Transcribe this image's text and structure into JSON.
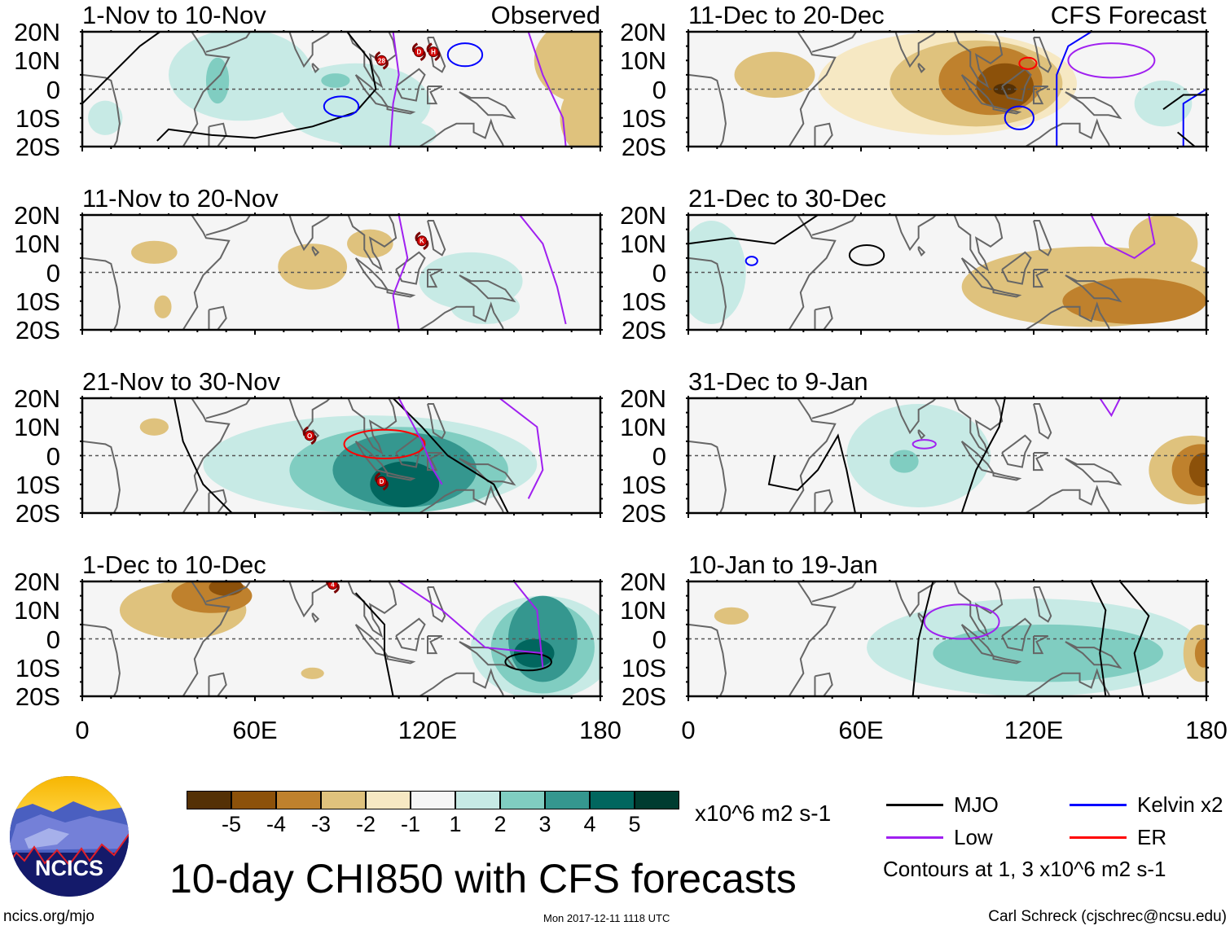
{
  "figure_title": "10-day CHI850 with CFS forecasts",
  "units": "x10^6 m2 s-1",
  "colorbar": {
    "ticks": [
      "-5",
      "-4",
      "-3",
      "-2",
      "-1",
      "1",
      "2",
      "3",
      "4",
      "5"
    ],
    "colors": [
      "#543005",
      "#8c510a",
      "#bf812d",
      "#dfc27d",
      "#f6e8c3",
      "#f5f5f5",
      "#c7eae5",
      "#80cdc1",
      "#35978f",
      "#01665e",
      "#003c30"
    ]
  },
  "legend": {
    "items": [
      {
        "label": "MJO",
        "color": "#000000"
      },
      {
        "label": "Kelvin x2",
        "color": "#0000ff"
      },
      {
        "label": "Low",
        "color": "#a020f0"
      },
      {
        "label": "ER",
        "color": "#ff0000"
      }
    ],
    "contours_note": "Contours at 1, 3 x10^6 m2 s-1"
  },
  "footer": {
    "url": "ncics.org/mjo",
    "timestamp": "Mon 2017-12-11 1118 UTC",
    "author": "Carl Schreck (cjschrec@ncsu.edu)"
  },
  "logo": {
    "text": "NCICS"
  },
  "axes": {
    "lat_labels": [
      "20N",
      "10N",
      "0",
      "10S",
      "20S"
    ],
    "lon_labels": [
      "0",
      "60E",
      "120E",
      "180"
    ],
    "lon_range": [
      0,
      180
    ],
    "lat_range": [
      -20,
      20
    ]
  },
  "panels": [
    {
      "title": "1-Nov to 10-Nov",
      "right_label": "Observed",
      "anomalies": [
        [
          55,
          5,
          25,
          16,
          1
        ],
        [
          95,
          -5,
          26,
          14,
          1
        ],
        [
          105,
          -16,
          18,
          6,
          1
        ],
        [
          8,
          -10,
          6,
          6,
          1
        ],
        [
          47,
          3,
          4,
          8,
          2
        ],
        [
          88,
          3,
          5,
          2.5,
          2
        ],
        [
          175,
          10,
          18,
          15,
          -2
        ],
        [
          178,
          -10,
          12,
          14,
          -2
        ]
      ],
      "contours": [
        {
          "type": "MJO",
          "points": [
            [
              0,
              -5
            ],
            [
              10,
              5
            ],
            [
              20,
              15
            ],
            [
              27,
              20
            ]
          ]
        },
        {
          "type": "MJO",
          "points": [
            [
              92,
              20
            ],
            [
              100,
              10
            ],
            [
              102,
              0
            ],
            [
              95,
              -8
            ],
            [
              80,
              -13
            ],
            [
              60,
              -17
            ],
            [
              45,
              -16
            ],
            [
              30,
              -14
            ],
            [
              26,
              -18
            ]
          ]
        },
        {
          "type": "Kelvin",
          "ellipse": [
            90,
            -6,
            6,
            3.5
          ]
        },
        {
          "type": "Kelvin",
          "ellipse": [
            133,
            12,
            6,
            4
          ]
        },
        {
          "type": "Low",
          "points": [
            [
              108,
              20
            ],
            [
              110,
              5
            ],
            [
              108,
              -5
            ],
            [
              107,
              -20
            ]
          ]
        },
        {
          "type": "Low",
          "points": [
            [
              155,
              20
            ],
            [
              160,
              5
            ],
            [
              167,
              -10
            ],
            [
              168,
              -20
            ]
          ]
        }
      ],
      "storms": [
        [
          104,
          10,
          "28"
        ],
        [
          117,
          13,
          "D"
        ],
        [
          122,
          13,
          "H"
        ]
      ]
    },
    {
      "title": "11-Nov to 20-Nov",
      "anomalies": [
        [
          25,
          7,
          8,
          4,
          -2
        ],
        [
          28,
          -12,
          3,
          4,
          -2
        ],
        [
          80,
          2,
          12,
          8,
          -2
        ],
        [
          100,
          10,
          8,
          5,
          -2
        ],
        [
          135,
          -3,
          18,
          10,
          1
        ],
        [
          140,
          -12,
          12,
          6,
          1
        ]
      ],
      "contours": [
        {
          "type": "Low",
          "points": [
            [
              110,
              20
            ],
            [
              113,
              5
            ],
            [
              108,
              -8
            ],
            [
              110,
              -20
            ]
          ]
        },
        {
          "type": "Low",
          "points": [
            [
              152,
              20
            ],
            [
              160,
              10
            ],
            [
              165,
              -5
            ],
            [
              168,
              -18
            ]
          ]
        }
      ],
      "storms": [
        [
          118,
          11,
          "K"
        ]
      ]
    },
    {
      "title": "21-Nov to 30-Nov",
      "anomalies": [
        [
          100,
          -3,
          58,
          17,
          1
        ],
        [
          110,
          -5,
          38,
          15,
          2
        ],
        [
          112,
          -5,
          25,
          13,
          3
        ],
        [
          112,
          -10,
          12,
          8,
          4
        ],
        [
          25,
          10,
          5,
          3,
          -2
        ]
      ],
      "contours": [
        {
          "type": "MJO",
          "points": [
            [
              32,
              20
            ],
            [
              35,
              5
            ],
            [
              42,
              -10
            ],
            [
              52,
              -20
            ]
          ]
        },
        {
          "type": "MJO",
          "points": [
            [
              108,
              20
            ],
            [
              118,
              10
            ],
            [
              127,
              0
            ],
            [
              135,
              -5
            ],
            [
              143,
              -10
            ],
            [
              148,
              -20
            ]
          ]
        },
        {
          "type": "ER",
          "ellipse": [
            105,
            4,
            14,
            5
          ]
        },
        {
          "type": "Low",
          "points": [
            [
              110,
              20
            ],
            [
              118,
              5
            ],
            [
              122,
              -5
            ],
            [
              125,
              -10
            ]
          ]
        },
        {
          "type": "Low",
          "points": [
            [
              145,
              20
            ],
            [
              158,
              10
            ],
            [
              160,
              -5
            ],
            [
              155,
              -15
            ]
          ]
        }
      ],
      "storms": [
        [
          79,
          7,
          "O"
        ],
        [
          104,
          -9,
          "D"
        ]
      ]
    },
    {
      "title": "1-Dec to 10-Dec",
      "anomalies": [
        [
          35,
          10,
          22,
          10,
          -2
        ],
        [
          45,
          15,
          14,
          6,
          -3
        ],
        [
          50,
          18,
          6,
          3,
          -4
        ],
        [
          80,
          -12,
          4,
          2,
          -2
        ],
        [
          160,
          -3,
          25,
          18,
          1
        ],
        [
          160,
          -3,
          18,
          16,
          2
        ],
        [
          160,
          0,
          12,
          15,
          3
        ],
        [
          157,
          -5,
          7,
          5,
          4
        ]
      ],
      "contours": [
        {
          "type": "MJO",
          "points": [
            [
              95,
              16
            ],
            [
              105,
              5
            ],
            [
              105,
              -5
            ],
            [
              108,
              -20
            ]
          ]
        },
        {
          "type": "MJO",
          "ellipse": [
            155,
            -8,
            8,
            3
          ]
        },
        {
          "type": "Low",
          "points": [
            [
              110,
              20
            ],
            [
              125,
              10
            ],
            [
              140,
              -3
            ],
            [
              160,
              -5
            ]
          ]
        },
        {
          "type": "Low",
          "points": [
            [
              150,
              20
            ],
            [
              158,
              10
            ],
            [
              160,
              -10
            ]
          ]
        }
      ],
      "storms": [
        [
          87,
          19,
          "4"
        ]
      ]
    },
    {
      "title": "11-Dec to 20-Dec",
      "right_label": "CFS Forecast",
      "anomalies": [
        [
          90,
          2,
          45,
          18,
          -1.5
        ],
        [
          30,
          5,
          14,
          8,
          -2
        ],
        [
          100,
          2,
          30,
          15,
          -2
        ],
        [
          105,
          3,
          18,
          12,
          -3
        ],
        [
          110,
          1,
          10,
          8,
          -4
        ],
        [
          110,
          0,
          4,
          2,
          -5
        ],
        [
          165,
          -5,
          10,
          8,
          1
        ]
      ],
      "contours": [
        {
          "type": "Kelvin",
          "ellipse": [
            115,
            -10,
            5,
            4
          ]
        },
        {
          "type": "Kelvin",
          "points": [
            [
              128,
              -20
            ],
            [
              128,
              5
            ],
            [
              132,
              15
            ],
            [
              140,
              20
            ]
          ]
        },
        {
          "type": "Kelvin",
          "points": [
            [
              172,
              -20
            ],
            [
              172,
              -5
            ],
            [
              180,
              0
            ]
          ]
        },
        {
          "type": "MJO",
          "points": [
            [
              165,
              -7
            ],
            [
              172,
              -2
            ],
            [
              180,
              -2
            ]
          ]
        },
        {
          "type": "MJO",
          "points": [
            [
              170,
              -15
            ],
            [
              176,
              -20
            ]
          ]
        },
        {
          "type": "ER",
          "ellipse": [
            118,
            9,
            3,
            2
          ]
        },
        {
          "type": "Low",
          "ellipse": [
            147,
            10,
            15,
            6
          ]
        }
      ],
      "storms": []
    },
    {
      "title": "21-Dec to 30-Dec",
      "anomalies": [
        [
          8,
          0,
          12,
          18,
          1
        ],
        [
          140,
          -5,
          45,
          14,
          -2
        ],
        [
          155,
          -10,
          25,
          8,
          -3
        ],
        [
          165,
          10,
          12,
          10,
          -2
        ]
      ],
      "contours": [
        {
          "type": "MJO",
          "ellipse": [
            62,
            6,
            6,
            3.5
          ]
        },
        {
          "type": "MJO",
          "points": [
            [
              0,
              10
            ],
            [
              15,
              12
            ],
            [
              30,
              10
            ],
            [
              45,
              20
            ]
          ]
        },
        {
          "type": "Kelvin",
          "ellipse": [
            22,
            4,
            2,
            1.5
          ]
        },
        {
          "type": "Low",
          "points": [
            [
              140,
              20
            ],
            [
              145,
              10
            ],
            [
              155,
              5
            ],
            [
              162,
              10
            ],
            [
              160,
              20
            ]
          ]
        }
      ],
      "storms": []
    },
    {
      "title": "31-Dec to 9-Jan",
      "anomalies": [
        [
          80,
          0,
          25,
          18,
          1
        ],
        [
          75,
          -2,
          5,
          4,
          2
        ],
        [
          175,
          -5,
          15,
          12,
          -2
        ],
        [
          178,
          -5,
          10,
          9,
          -3
        ],
        [
          179,
          -5,
          5,
          6,
          -4
        ]
      ],
      "contours": [
        {
          "type": "MJO",
          "points": [
            [
              30,
              0
            ],
            [
              28,
              -10
            ],
            [
              38,
              -12
            ],
            [
              45,
              -5
            ],
            [
              52,
              7
            ],
            [
              55,
              -5
            ],
            [
              58,
              -20
            ]
          ]
        },
        {
          "type": "MJO",
          "points": [
            [
              95,
              -20
            ],
            [
              100,
              -5
            ],
            [
              108,
              10
            ],
            [
              110,
              20
            ]
          ]
        },
        {
          "type": "Low",
          "ellipse": [
            82,
            4,
            4,
            1.5
          ]
        },
        {
          "type": "Low",
          "points": [
            [
              143,
              20
            ],
            [
              147,
              14
            ],
            [
              150,
              20
            ]
          ]
        }
      ],
      "storms": []
    },
    {
      "title": "10-Jan to 19-Jan",
      "anomalies": [
        [
          120,
          -3,
          58,
          17,
          1
        ],
        [
          125,
          -5,
          40,
          10,
          2
        ],
        [
          15,
          8,
          6,
          3,
          -2
        ],
        [
          178,
          -5,
          6,
          10,
          -2
        ],
        [
          179,
          -5,
          3,
          5,
          -3
        ]
      ],
      "contours": [
        {
          "type": "MJO",
          "points": [
            [
              85,
              20
            ],
            [
              80,
              0
            ],
            [
              78,
              -20
            ]
          ]
        },
        {
          "type": "MJO",
          "points": [
            [
              140,
              20
            ],
            [
              145,
              10
            ],
            [
              143,
              -5
            ],
            [
              145,
              -20
            ]
          ]
        },
        {
          "type": "MJO",
          "points": [
            [
              150,
              20
            ],
            [
              160,
              8
            ],
            [
              155,
              -5
            ],
            [
              158,
              -20
            ]
          ]
        },
        {
          "type": "Low",
          "ellipse": [
            95,
            6,
            13,
            6
          ]
        }
      ],
      "storms": []
    }
  ]
}
